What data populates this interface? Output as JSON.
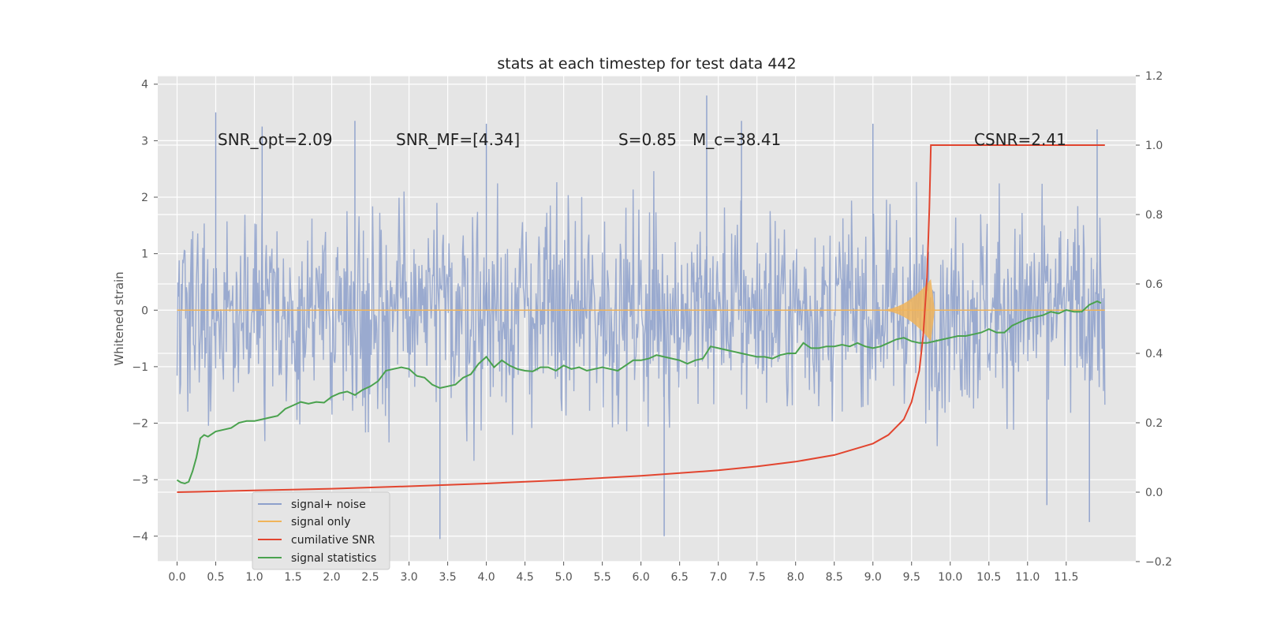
{
  "chart_data": {
    "type": "line",
    "title": "stats at each timestep for test data 442",
    "ylabel": "Whitened strain",
    "y2label": "",
    "xlim": [
      -0.25,
      12.4
    ],
    "ylim": [
      -4.45,
      4.15
    ],
    "y2lim": [
      -0.2,
      1.2
    ],
    "x_ticks": [
      "0.0",
      "0.5",
      "1.0",
      "1.5",
      "2.0",
      "2.5",
      "3.0",
      "3.5",
      "4.0",
      "4.5",
      "5.0",
      "5.5",
      "6.0",
      "6.5",
      "7.0",
      "7.5",
      "8.0",
      "8.5",
      "9.0",
      "9.5",
      "10.0",
      "10.5",
      "11.0",
      "11.5"
    ],
    "y_ticks": [
      "4",
      "3",
      "2",
      "1",
      "0",
      "−1",
      "−2",
      "−3",
      "−4"
    ],
    "y2_ticks": [
      "1.2",
      "1.0",
      "0.8",
      "0.6",
      "0.4",
      "0.2",
      "0.0",
      "−0.2"
    ],
    "grid": true,
    "legend_placement": "lower-left",
    "annotations": [
      {
        "label": "SNR_opt=2.09"
      },
      {
        "label": "SNR_MF=[4.34]"
      },
      {
        "label": "S=0.85"
      },
      {
        "label": "M_c=38.41"
      },
      {
        "label": "CSNR=2.41"
      }
    ],
    "series": [
      {
        "name": "signal+ noise",
        "axis": "left",
        "color": "#8da0cb",
        "style": "noise band, values roughly between -2.5 and 2.5 with spikes to about ±4",
        "x_range": [
          0,
          12.0
        ],
        "spike_points": [
          {
            "x": 0.5,
            "y": 3.5
          },
          {
            "x": 1.1,
            "y": 3.25
          },
          {
            "x": 2.3,
            "y": 3.35
          },
          {
            "x": 3.4,
            "y": -4.05
          },
          {
            "x": 4.0,
            "y": 3.3
          },
          {
            "x": 6.3,
            "y": -4.0
          },
          {
            "x": 6.85,
            "y": 3.8
          },
          {
            "x": 7.3,
            "y": 3.35
          },
          {
            "x": 9.0,
            "y": 3.3
          },
          {
            "x": 11.25,
            "y": -3.45
          },
          {
            "x": 11.8,
            "y": -3.75
          },
          {
            "x": 11.9,
            "y": 3.2
          }
        ]
      },
      {
        "name": "signal only",
        "axis": "left",
        "color": "#f0b45a",
        "style": "near zero, chirp burst up to about ±0.55 near x=9.7",
        "x_range": [
          0,
          12.0
        ]
      },
      {
        "name": "cumilative SNR",
        "axis": "right",
        "color": "#e2452f",
        "x": [
          0,
          1,
          2,
          3,
          4,
          5,
          6,
          7,
          7.5,
          8,
          8.5,
          9,
          9.2,
          9.4,
          9.5,
          9.6,
          9.65,
          9.7,
          9.73,
          9.75,
          10.5,
          11.0,
          11.5,
          12.0
        ],
        "values": [
          0.0,
          0.005,
          0.01,
          0.017,
          0.025,
          0.035,
          0.047,
          0.063,
          0.074,
          0.088,
          0.107,
          0.14,
          0.165,
          0.21,
          0.26,
          0.35,
          0.45,
          0.62,
          0.82,
          1.0,
          1.0,
          1.0,
          1.0,
          1.0
        ]
      },
      {
        "name": "signal statistics",
        "axis": "right",
        "color": "#4aa24e",
        "x": [
          0.0,
          0.05,
          0.1,
          0.15,
          0.2,
          0.25,
          0.3,
          0.35,
          0.4,
          0.5,
          0.6,
          0.7,
          0.8,
          0.9,
          1.0,
          1.1,
          1.2,
          1.3,
          1.4,
          1.5,
          1.6,
          1.7,
          1.8,
          1.9,
          2.0,
          2.1,
          2.2,
          2.3,
          2.4,
          2.5,
          2.6,
          2.7,
          2.8,
          2.9,
          3.0,
          3.1,
          3.2,
          3.3,
          3.4,
          3.5,
          3.6,
          3.7,
          3.8,
          3.9,
          4.0,
          4.1,
          4.2,
          4.3,
          4.4,
          4.5,
          4.6,
          4.7,
          4.8,
          4.9,
          5.0,
          5.1,
          5.2,
          5.3,
          5.4,
          5.5,
          5.6,
          5.7,
          5.8,
          5.9,
          6.0,
          6.1,
          6.2,
          6.3,
          6.4,
          6.5,
          6.6,
          6.7,
          6.8,
          6.9,
          7.0,
          7.1,
          7.2,
          7.3,
          7.4,
          7.5,
          7.6,
          7.7,
          7.8,
          7.9,
          8.0,
          8.1,
          8.2,
          8.3,
          8.4,
          8.5,
          8.6,
          8.7,
          8.8,
          8.9,
          9.0,
          9.1,
          9.2,
          9.3,
          9.4,
          9.5,
          9.6,
          9.7,
          9.8,
          9.9,
          10.0,
          10.1,
          10.2,
          10.3,
          10.4,
          10.5,
          10.6,
          10.7,
          10.8,
          10.9,
          11.0,
          11.1,
          11.2,
          11.3,
          11.4,
          11.5,
          11.6,
          11.7,
          11.8,
          11.9,
          11.95
        ],
        "values": [
          0.035,
          0.028,
          0.025,
          0.03,
          0.06,
          0.1,
          0.155,
          0.165,
          0.16,
          0.175,
          0.18,
          0.185,
          0.2,
          0.205,
          0.205,
          0.21,
          0.215,
          0.22,
          0.24,
          0.25,
          0.26,
          0.255,
          0.26,
          0.258,
          0.275,
          0.285,
          0.29,
          0.28,
          0.295,
          0.305,
          0.32,
          0.35,
          0.355,
          0.36,
          0.355,
          0.335,
          0.33,
          0.31,
          0.3,
          0.305,
          0.31,
          0.33,
          0.34,
          0.37,
          0.39,
          0.36,
          0.38,
          0.365,
          0.355,
          0.35,
          0.348,
          0.36,
          0.36,
          0.35,
          0.365,
          0.355,
          0.36,
          0.35,
          0.355,
          0.36,
          0.355,
          0.35,
          0.365,
          0.38,
          0.38,
          0.385,
          0.395,
          0.39,
          0.385,
          0.38,
          0.37,
          0.38,
          0.385,
          0.42,
          0.415,
          0.41,
          0.405,
          0.4,
          0.395,
          0.39,
          0.39,
          0.385,
          0.395,
          0.4,
          0.4,
          0.43,
          0.415,
          0.415,
          0.42,
          0.42,
          0.425,
          0.42,
          0.43,
          0.42,
          0.415,
          0.42,
          0.43,
          0.44,
          0.445,
          0.435,
          0.43,
          0.43,
          0.435,
          0.44,
          0.445,
          0.45,
          0.45,
          0.455,
          0.46,
          0.47,
          0.46,
          0.46,
          0.48,
          0.49,
          0.5,
          0.505,
          0.51,
          0.52,
          0.515,
          0.525,
          0.52,
          0.52,
          0.54,
          0.55,
          0.545
        ]
      }
    ]
  }
}
